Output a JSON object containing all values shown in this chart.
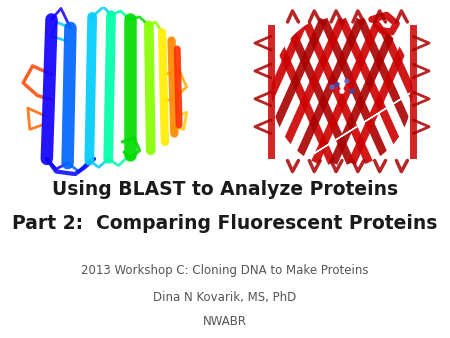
{
  "background_color": "#ffffff",
  "title_line1": "Using BLAST to Analyze Proteins",
  "title_line2": "Part 2:  Comparing Fluorescent Proteins",
  "subtitle_line1": "2013 Workshop C: Cloning DNA to Make Proteins",
  "subtitle_line2": "Dina N Kovarik, MS, PhD",
  "subtitle_line3": "NWABR",
  "title_fontsize": 13.5,
  "title_fontweight": "bold",
  "title_color": "#1a1a1a",
  "subtitle_fontsize": 8.5,
  "subtitle_color": "#555555"
}
